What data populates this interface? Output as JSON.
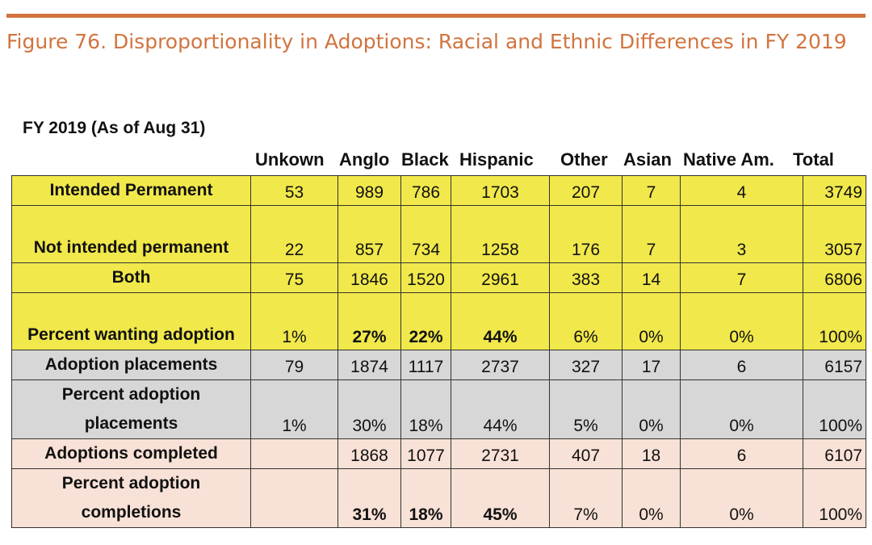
{
  "figure_title": "Figure 76. Disproportionality in Adoptions: Racial and Ethnic Differences in FY 2019",
  "colors": {
    "accent": "#d2743f",
    "yellow_rows": "#f1e84b",
    "gray_rows": "#d7d7d7",
    "pink_rows": "#f8e1d6"
  },
  "fy_label": "FY 2019 (As of Aug 31)",
  "columns": [
    "Unkown",
    "Anglo",
    "Black",
    "Hispanic",
    "Other",
    "Asian",
    "Native Am.",
    "Total"
  ],
  "rows": [
    {
      "label": "Intended Permanent",
      "cells": [
        "53",
        "989",
        "786",
        "1703",
        "207",
        "7",
        "4",
        "3749"
      ]
    },
    {
      "label": "Not intended permanent",
      "cells": [
        "22",
        "857",
        "734",
        "1258",
        "176",
        "7",
        "3",
        "3057"
      ]
    },
    {
      "label": "Both",
      "cells": [
        "75",
        "1846",
        "1520",
        "2961",
        "383",
        "14",
        "7",
        "6806"
      ]
    },
    {
      "label": "Percent wanting adoption",
      "cells": [
        "1%",
        "27%",
        "22%",
        "44%",
        "6%",
        "0%",
        "0%",
        "100%"
      ]
    },
    {
      "label": "Adoption placements",
      "cells": [
        "79",
        "1874",
        "1117",
        "2737",
        "327",
        "17",
        "6",
        "6157"
      ]
    },
    {
      "label": "Percent adoption placements",
      "cells": [
        "1%",
        "30%",
        "18%",
        "44%",
        "5%",
        "0%",
        "0%",
        "100%"
      ]
    },
    {
      "label": "Adoptions completed",
      "cells": [
        "",
        "1868",
        "1077",
        "2731",
        "407",
        "18",
        "6",
        "6107"
      ]
    },
    {
      "label": "Percent adoption completions",
      "cells": [
        "",
        "31%",
        "18%",
        "45%",
        "7%",
        "0%",
        "0%",
        "100%"
      ]
    }
  ]
}
